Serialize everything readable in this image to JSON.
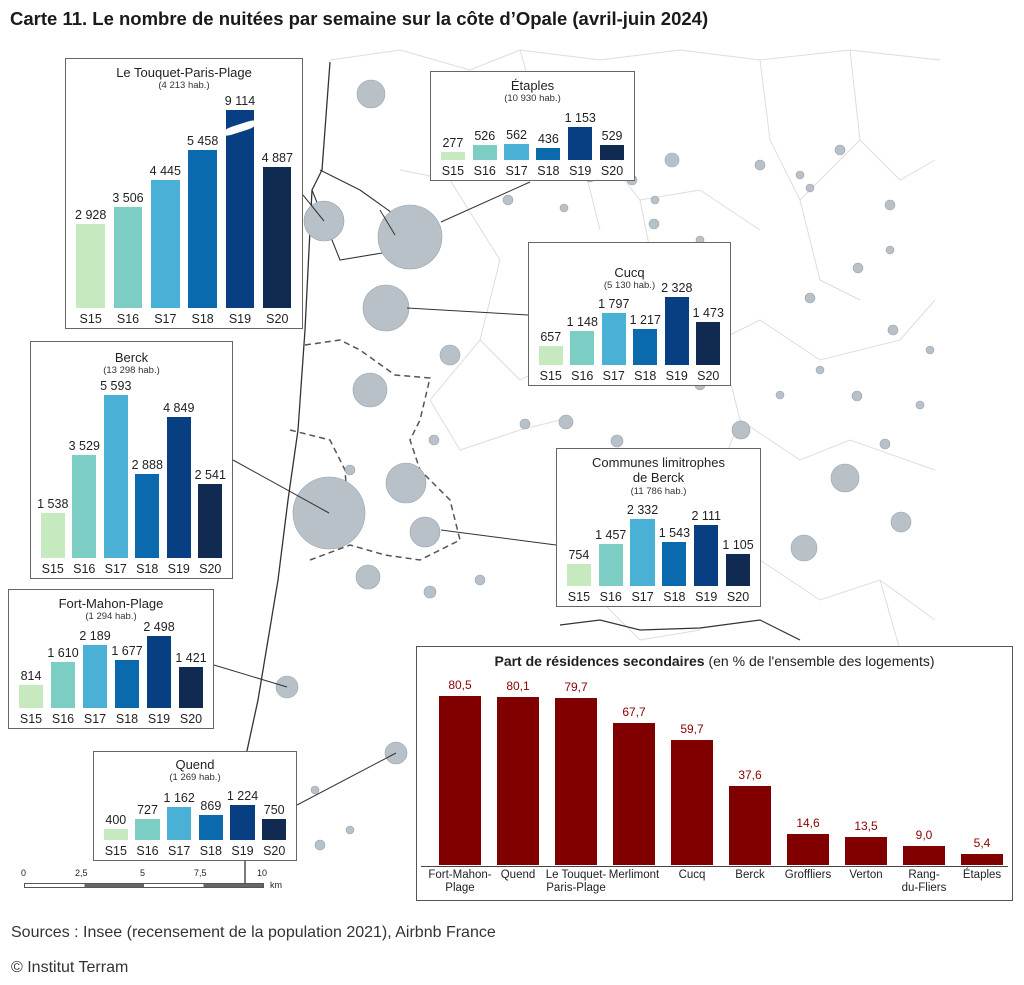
{
  "title": "Carte 11. Le nombre de nuitées par semaine sur la côte d’Opale (avril-juin 2024)",
  "weeks": [
    "S15",
    "S16",
    "S17",
    "S18",
    "S19",
    "S20"
  ],
  "week_colors": [
    "#c7e9c0",
    "#7ccdc4",
    "#4bb0d6",
    "#0b69ad",
    "#083e82",
    "#102a52"
  ],
  "panels": [
    {
      "name": "Le Touquet-Paris-Plage",
      "pop": "(4 213 hab.)",
      "values": [
        2928,
        3506,
        4445,
        5458,
        9114,
        4887
      ],
      "labels": [
        "2 928",
        "3 506",
        "4 445",
        "5 458",
        "9 114",
        "4 887"
      ],
      "axis_break_bar": "S19"
    },
    {
      "name": "Étaples",
      "pop": "(10 930 hab.)",
      "values": [
        277,
        526,
        562,
        436,
        1153,
        529
      ],
      "labels": [
        "277",
        "526",
        "562",
        "436",
        "1 153",
        "529"
      ]
    },
    {
      "name": "Cucq",
      "pop": "(5 130 hab.)",
      "values": [
        657,
        1148,
        1797,
        1217,
        2328,
        1473
      ],
      "labels": [
        "657",
        "1 148",
        "1 797",
        "1 217",
        "2 328",
        "1 473"
      ]
    },
    {
      "name": "Berck",
      "pop": "(13 298 hab.)",
      "values": [
        1538,
        3529,
        5593,
        2888,
        4849,
        2541
      ],
      "labels": [
        "1 538",
        "3 529",
        "5 593",
        "2 888",
        "4 849",
        "2 541"
      ]
    },
    {
      "name": "Communes limitrophes de Berck",
      "pop": "(11 786 hab.)",
      "values": [
        754,
        1457,
        2332,
        1543,
        2111,
        1105
      ],
      "labels": [
        "754",
        "1 457",
        "2 332",
        "1 543",
        "2 111",
        "1 105"
      ]
    },
    {
      "name": "Fort-Mahon-Plage",
      "pop": "(1 294 hab.)",
      "values": [
        814,
        1610,
        2189,
        1677,
        2498,
        1421
      ],
      "labels": [
        "814",
        "1 610",
        "2 189",
        "1 677",
        "2 498",
        "1 421"
      ]
    },
    {
      "name": "Quend",
      "pop": "(1 269 hab.)",
      "values": [
        400,
        727,
        1162,
        869,
        1224,
        750
      ],
      "labels": [
        "400",
        "727",
        "1 162",
        "869",
        "1 224",
        "750"
      ]
    }
  ],
  "chart_data": {
    "type": "bar",
    "title": "Part de résidences secondaires",
    "subtitle": "(en % de l'ensemble des logements)",
    "categories": [
      "Fort-Mahon-Plage",
      "Quend",
      "Le Touquet-Paris-Plage",
      "Merlimont",
      "Cucq",
      "Berck",
      "Groffliers",
      "Verton",
      "Rang-du-Fliers",
      "Étaples"
    ],
    "category_labels": [
      "Fort-Mahon-\nPlage",
      "Quend",
      "Le Touquet-\nParis-Plage",
      "Merlimont",
      "Cucq",
      "Berck",
      "Groffliers",
      "Verton",
      "Rang-\ndu-Fliers",
      "Étaples"
    ],
    "values": [
      80.5,
      80.1,
      79.7,
      67.7,
      59.7,
      37.6,
      14.6,
      13.5,
      9.0,
      5.4
    ],
    "value_labels": [
      "80,5",
      "80,1",
      "79,7",
      "67,7",
      "59,7",
      "37,6",
      "14,6",
      "13,5",
      "9,0",
      "5,4"
    ],
    "color": "#800000",
    "ylim": [
      0,
      85
    ]
  },
  "scale": {
    "ticks": [
      "0",
      "2,5",
      "5",
      "7,5",
      "10"
    ],
    "unit": "km"
  },
  "sources": "Sources : Insee (recensement de la population 2021), Airbnb France",
  "copyright": "© Institut Terram"
}
